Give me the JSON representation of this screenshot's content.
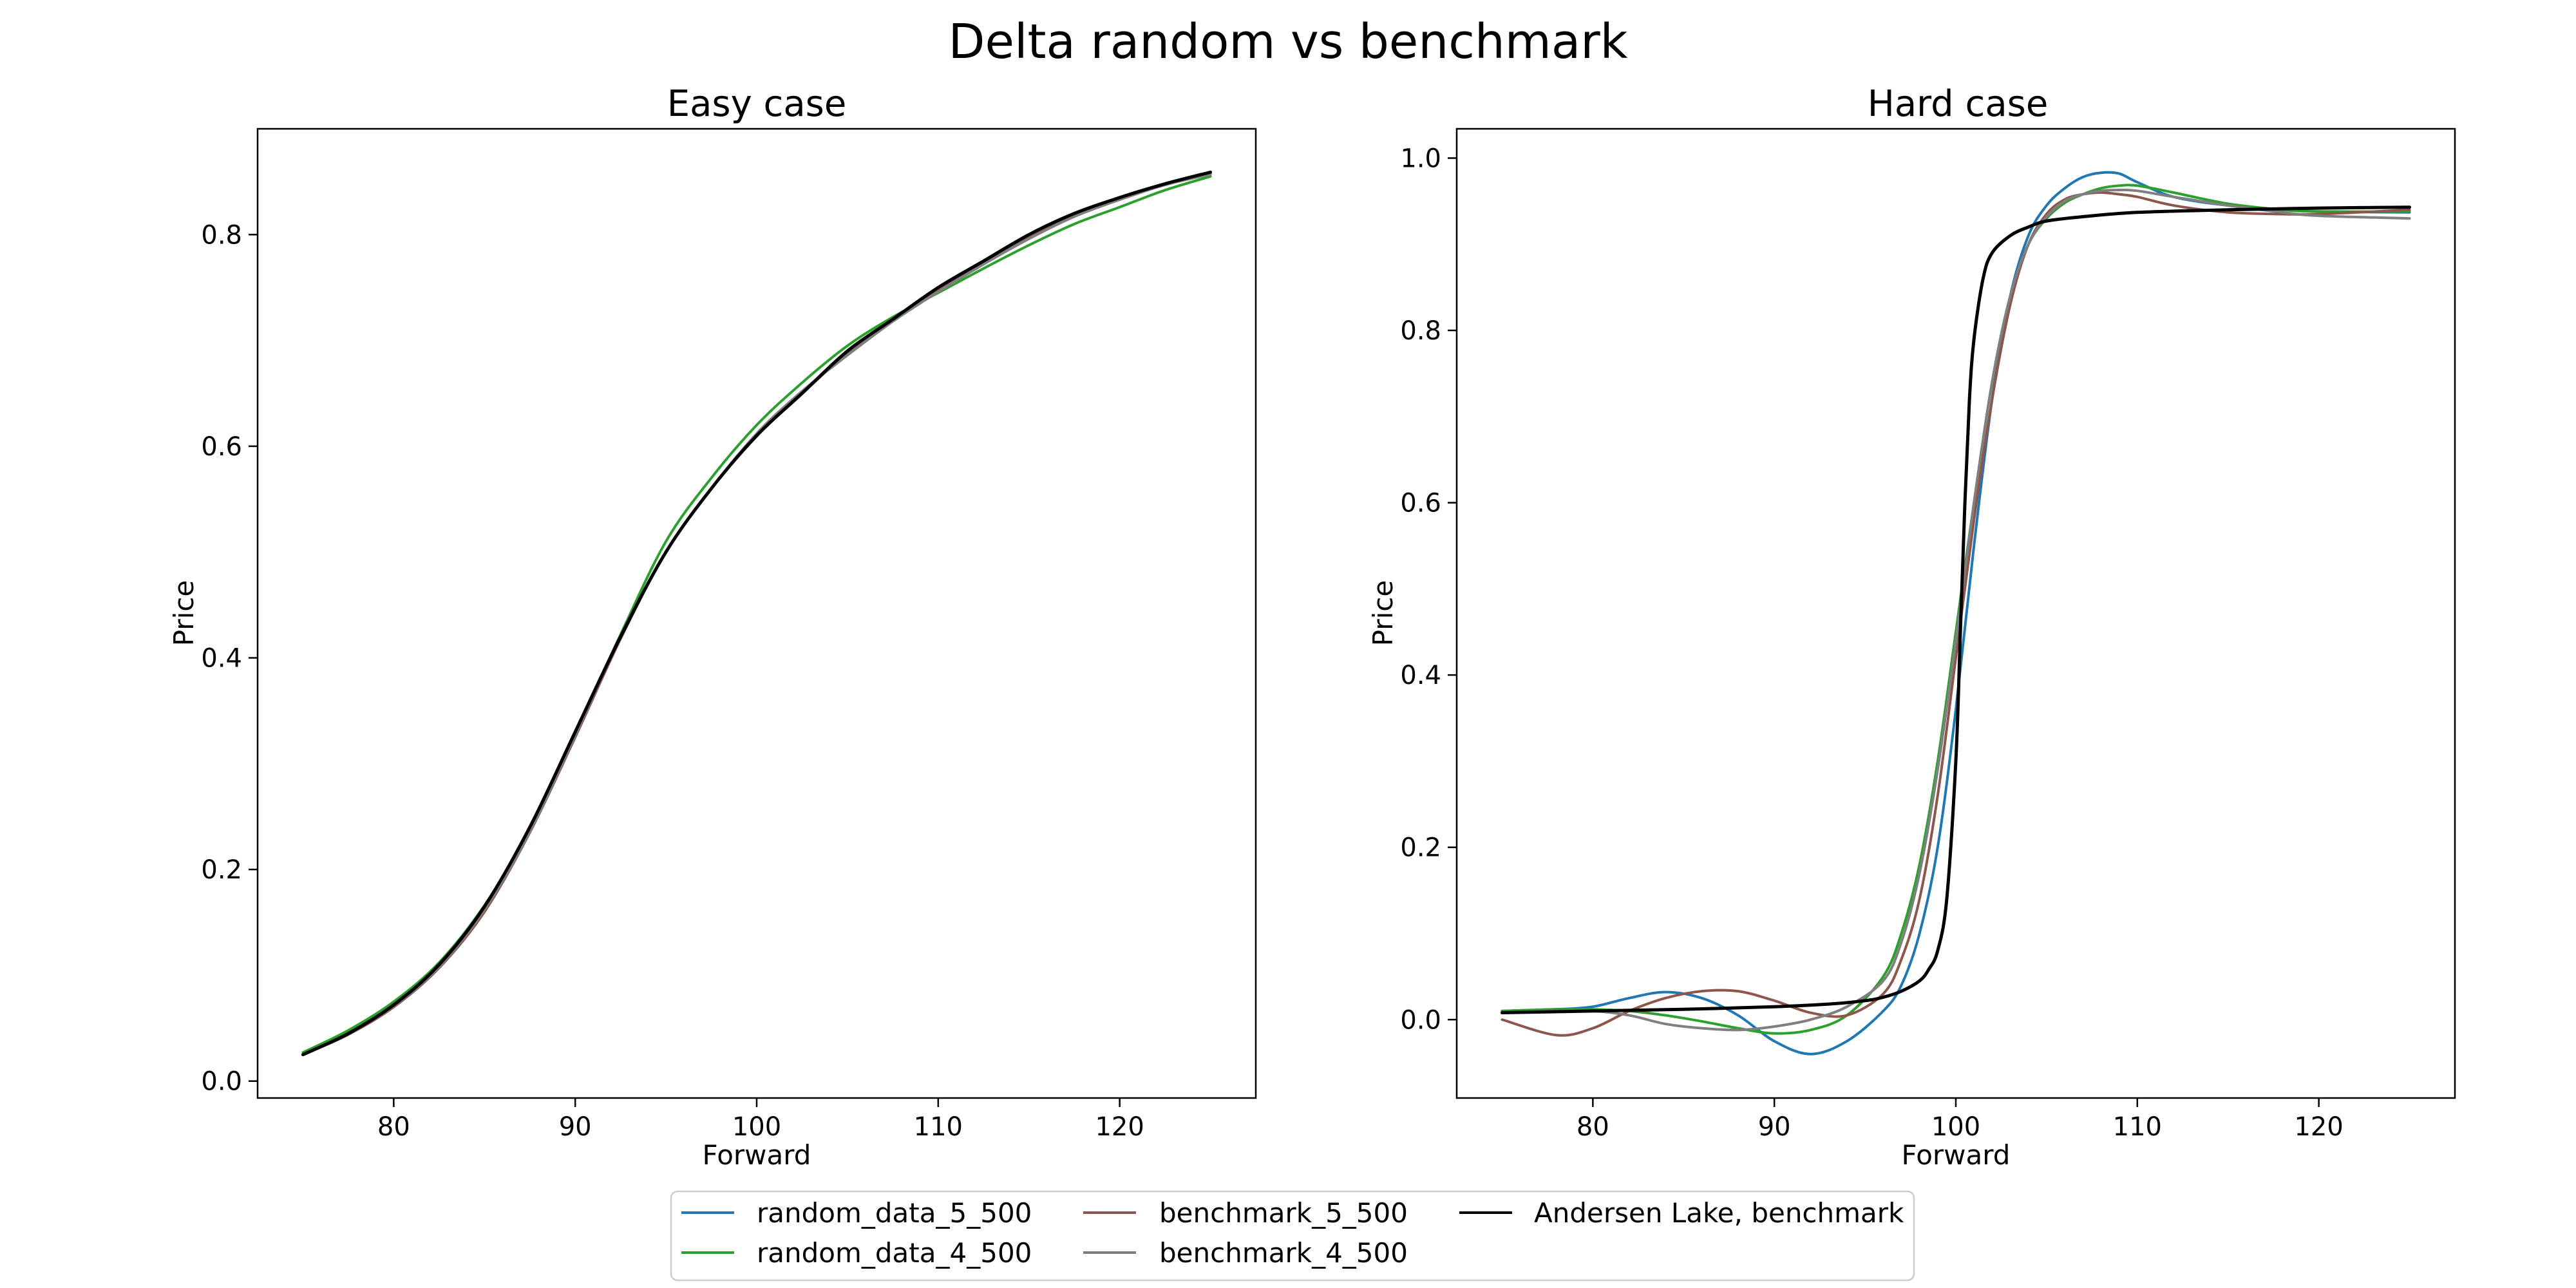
{
  "figure": {
    "title": "Delta random vs benchmark"
  },
  "legend": {
    "placement": "bottom-center",
    "entries": [
      {
        "key": "r5",
        "label": "random_data_5_500",
        "color": "#1f77b4"
      },
      {
        "key": "r4",
        "label": "random_data_4_500",
        "color": "#2ca02c"
      },
      {
        "key": "b5",
        "label": "benchmark_5_500",
        "color": "#8c564b"
      },
      {
        "key": "b4",
        "label": "benchmark_4_500",
        "color": "#7f7f7f"
      },
      {
        "key": "al",
        "label": "Andersen Lake, benchmark",
        "color": "#000000"
      }
    ]
  },
  "chart_data": [
    {
      "type": "line",
      "title": "Easy case",
      "xlabel": "Forward",
      "ylabel": "Price",
      "xlim": [
        72.5,
        127.5
      ],
      "ylim": [
        -0.016,
        0.9
      ],
      "xticks": [
        80,
        90,
        100,
        110,
        120
      ],
      "yticks": [
        0.0,
        0.2,
        0.4,
        0.6,
        0.8
      ],
      "ytick_labels": [
        "0.0",
        "0.2",
        "0.4",
        "0.6",
        "0.8"
      ],
      "grid": false,
      "series": [
        {
          "name": "random_data_5_500",
          "color": "#1f77b4",
          "x": [
            75,
            77.5,
            80,
            82.5,
            85,
            87.5,
            90,
            92.5,
            95,
            97.5,
            100,
            102.5,
            105,
            107.5,
            110,
            112.5,
            115,
            117.5,
            120,
            122.5,
            125
          ],
          "y": [
            0.025,
            0.045,
            0.072,
            0.11,
            0.165,
            0.24,
            0.33,
            0.42,
            0.5,
            0.56,
            0.61,
            0.65,
            0.69,
            0.72,
            0.75,
            0.775,
            0.8,
            0.82,
            0.835,
            0.848,
            0.858
          ]
        },
        {
          "name": "random_data_4_500",
          "color": "#2ca02c",
          "x": [
            75,
            77.5,
            80,
            82.5,
            85,
            87.5,
            90,
            92.5,
            95,
            97.5,
            100,
            102.5,
            105,
            107.5,
            110,
            112.5,
            115,
            117.5,
            120,
            122.5,
            125
          ],
          "y": [
            0.027,
            0.048,
            0.075,
            0.112,
            0.166,
            0.238,
            0.328,
            0.422,
            0.51,
            0.57,
            0.62,
            0.66,
            0.695,
            0.722,
            0.745,
            0.768,
            0.79,
            0.81,
            0.826,
            0.842,
            0.855
          ]
        },
        {
          "name": "benchmark_5_500",
          "color": "#8c564b",
          "x": [
            75,
            77.5,
            80,
            82.5,
            85,
            87.5,
            90,
            92.5,
            95,
            97.5,
            100,
            102.5,
            105,
            107.5,
            110,
            112.5,
            115,
            117.5,
            120,
            122.5,
            125
          ],
          "y": [
            0.025,
            0.044,
            0.07,
            0.107,
            0.16,
            0.235,
            0.325,
            0.418,
            0.5,
            0.56,
            0.61,
            0.65,
            0.688,
            0.72,
            0.748,
            0.774,
            0.797,
            0.818,
            0.834,
            0.847,
            0.858
          ]
        },
        {
          "name": "benchmark_4_500",
          "color": "#7f7f7f",
          "x": [
            75,
            77.5,
            80,
            82.5,
            85,
            87.5,
            90,
            92.5,
            95,
            97.5,
            100,
            102.5,
            105,
            107.5,
            110,
            112.5,
            115,
            117.5,
            120,
            122.5,
            125
          ],
          "y": [
            0.025,
            0.045,
            0.071,
            0.108,
            0.162,
            0.236,
            0.327,
            0.42,
            0.5,
            0.56,
            0.612,
            0.652,
            0.686,
            0.718,
            0.746,
            0.772,
            0.796,
            0.817,
            0.833,
            0.847,
            0.857
          ]
        },
        {
          "name": "Andersen Lake, benchmark",
          "color": "#000000",
          "x": [
            75,
            77.5,
            80,
            82.5,
            85,
            87.5,
            90,
            92.5,
            95,
            97.5,
            100,
            102.5,
            105,
            107.5,
            110,
            112.5,
            115,
            117.5,
            120,
            122.5,
            125
          ],
          "y": [
            0.025,
            0.045,
            0.072,
            0.11,
            0.165,
            0.24,
            0.33,
            0.42,
            0.5,
            0.56,
            0.61,
            0.65,
            0.69,
            0.72,
            0.75,
            0.775,
            0.8,
            0.82,
            0.835,
            0.848,
            0.859
          ]
        }
      ]
    },
    {
      "type": "line",
      "title": "Hard case",
      "xlabel": "Forward",
      "ylabel": "Price",
      "xlim": [
        72.5,
        127.5
      ],
      "ylim": [
        -0.091,
        1.034
      ],
      "xticks": [
        80,
        90,
        100,
        110,
        120
      ],
      "yticks": [
        0.0,
        0.2,
        0.4,
        0.6,
        0.8,
        1.0
      ],
      "ytick_labels": [
        "0.0",
        "0.2",
        "0.4",
        "0.6",
        "0.8",
        "1.0"
      ],
      "grid": false,
      "series": [
        {
          "name": "random_data_5_500",
          "color": "#1f77b4",
          "x": [
            75,
            78,
            80,
            82,
            84,
            86,
            88,
            90,
            92,
            94,
            96,
            97,
            98,
            99,
            100,
            101,
            102,
            103,
            104,
            105,
            106,
            107,
            108,
            109,
            110,
            112,
            115,
            118,
            120,
            125
          ],
          "y": [
            0.01,
            0.012,
            0.015,
            0.025,
            0.032,
            0.025,
            0.005,
            -0.025,
            -0.04,
            -0.025,
            0.01,
            0.04,
            0.1,
            0.2,
            0.36,
            0.55,
            0.72,
            0.84,
            0.91,
            0.945,
            0.965,
            0.978,
            0.983,
            0.982,
            0.972,
            0.955,
            0.945,
            0.94,
            0.938,
            0.937
          ]
        },
        {
          "name": "random_data_4_500",
          "color": "#2ca02c",
          "x": [
            75,
            78,
            80,
            82,
            84,
            86,
            88,
            90,
            92,
            94,
            96,
            97,
            98,
            99,
            100,
            101,
            102,
            103,
            104,
            105,
            106,
            107,
            108,
            109,
            110,
            112,
            115,
            118,
            120,
            125
          ],
          "y": [
            0.01,
            0.012,
            0.012,
            0.01,
            0.005,
            -0.002,
            -0.01,
            -0.016,
            -0.012,
            0.005,
            0.05,
            0.1,
            0.18,
            0.3,
            0.45,
            0.6,
            0.74,
            0.84,
            0.9,
            0.93,
            0.948,
            0.958,
            0.965,
            0.968,
            0.968,
            0.96,
            0.947,
            0.94,
            0.938,
            0.938
          ]
        },
        {
          "name": "benchmark_5_500",
          "color": "#8c564b",
          "x": [
            75,
            78,
            80,
            82,
            84,
            86,
            88,
            90,
            92,
            94,
            96,
            97,
            98,
            99,
            100,
            101,
            102,
            103,
            104,
            105,
            106,
            107,
            108,
            109,
            110,
            112,
            115,
            118,
            120,
            125
          ],
          "y": [
            0.0,
            -0.018,
            -0.01,
            0.01,
            0.025,
            0.033,
            0.033,
            0.022,
            0.008,
            0.005,
            0.03,
            0.07,
            0.14,
            0.26,
            0.42,
            0.58,
            0.72,
            0.83,
            0.9,
            0.935,
            0.952,
            0.958,
            0.96,
            0.958,
            0.955,
            0.945,
            0.937,
            0.935,
            0.935,
            0.94
          ]
        },
        {
          "name": "benchmark_4_500",
          "color": "#7f7f7f",
          "x": [
            75,
            78,
            80,
            82,
            84,
            86,
            88,
            90,
            92,
            94,
            96,
            97,
            98,
            99,
            100,
            101,
            102,
            103,
            104,
            105,
            106,
            107,
            108,
            109,
            110,
            112,
            115,
            118,
            120,
            125
          ],
          "y": [
            0.008,
            0.01,
            0.01,
            0.005,
            -0.005,
            -0.01,
            -0.012,
            -0.008,
            0.0,
            0.015,
            0.045,
            0.09,
            0.17,
            0.29,
            0.44,
            0.6,
            0.74,
            0.84,
            0.9,
            0.932,
            0.95,
            0.958,
            0.962,
            0.963,
            0.962,
            0.955,
            0.945,
            0.937,
            0.933,
            0.93
          ]
        },
        {
          "name": "Andersen Lake, benchmark",
          "color": "#000000",
          "x": [
            75,
            80,
            85,
            90,
            93,
            95,
            96,
            97,
            98,
            98.5,
            99,
            99.5,
            100,
            100.25,
            100.5,
            100.75,
            101,
            101.5,
            102,
            103,
            104,
            105,
            107,
            110,
            115,
            120,
            125
          ],
          "y": [
            0.008,
            0.01,
            0.012,
            0.015,
            0.018,
            0.022,
            0.026,
            0.033,
            0.045,
            0.058,
            0.08,
            0.14,
            0.3,
            0.45,
            0.6,
            0.72,
            0.79,
            0.86,
            0.89,
            0.91,
            0.92,
            0.927,
            0.932,
            0.937,
            0.94,
            0.942,
            0.943
          ]
        }
      ]
    }
  ]
}
